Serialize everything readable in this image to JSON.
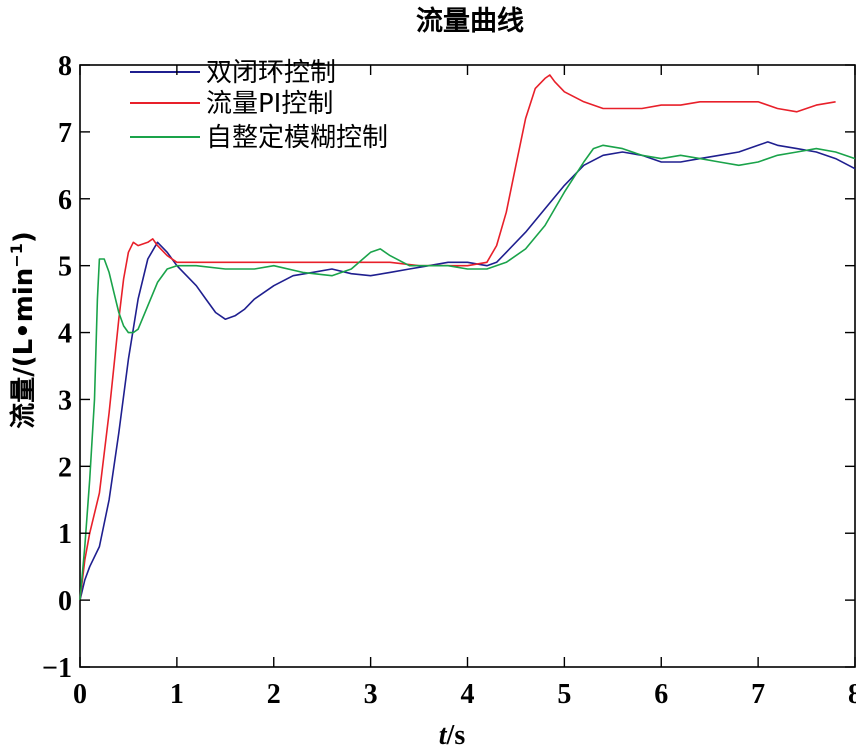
{
  "chart_data": {
    "type": "line",
    "title": "流量曲线",
    "xlabel_main": "t",
    "xlabel_unit": "/s",
    "ylabel_main": "流量/(L•min",
    "ylabel_sup": "−1",
    "ylabel_close": ")",
    "xlim": [
      0,
      8
    ],
    "ylim": [
      -1,
      8
    ],
    "xticks": [
      0,
      1,
      2,
      3,
      4,
      5,
      6,
      7,
      8
    ],
    "yticks": [
      -1,
      0,
      1,
      2,
      3,
      4,
      5,
      6,
      7,
      8
    ],
    "ytick_labels": [
      "−1",
      "0",
      "1",
      "2",
      "3",
      "4",
      "5",
      "6",
      "7",
      "8"
    ],
    "grid": false,
    "legend_position": "top-left",
    "series": [
      {
        "name": "双闭环控制",
        "color": "#1f1f8f",
        "points": [
          [
            0,
            0
          ],
          [
            0.05,
            0.3
          ],
          [
            0.1,
            0.5
          ],
          [
            0.2,
            0.8
          ],
          [
            0.3,
            1.5
          ],
          [
            0.4,
            2.5
          ],
          [
            0.5,
            3.6
          ],
          [
            0.6,
            4.5
          ],
          [
            0.7,
            5.1
          ],
          [
            0.8,
            5.35
          ],
          [
            0.9,
            5.2
          ],
          [
            1.0,
            5.0
          ],
          [
            1.1,
            4.85
          ],
          [
            1.2,
            4.7
          ],
          [
            1.3,
            4.5
          ],
          [
            1.4,
            4.3
          ],
          [
            1.5,
            4.2
          ],
          [
            1.6,
            4.25
          ],
          [
            1.7,
            4.35
          ],
          [
            1.8,
            4.5
          ],
          [
            2.0,
            4.7
          ],
          [
            2.2,
            4.85
          ],
          [
            2.4,
            4.9
          ],
          [
            2.6,
            4.95
          ],
          [
            2.8,
            4.88
          ],
          [
            3.0,
            4.85
          ],
          [
            3.2,
            4.9
          ],
          [
            3.4,
            4.95
          ],
          [
            3.6,
            5.0
          ],
          [
            3.8,
            5.05
          ],
          [
            4.0,
            5.05
          ],
          [
            4.2,
            5.0
          ],
          [
            4.3,
            5.05
          ],
          [
            4.4,
            5.2
          ],
          [
            4.6,
            5.5
          ],
          [
            4.8,
            5.85
          ],
          [
            5.0,
            6.2
          ],
          [
            5.2,
            6.5
          ],
          [
            5.4,
            6.65
          ],
          [
            5.6,
            6.7
          ],
          [
            5.8,
            6.65
          ],
          [
            6.0,
            6.55
          ],
          [
            6.2,
            6.55
          ],
          [
            6.4,
            6.6
          ],
          [
            6.6,
            6.65
          ],
          [
            6.8,
            6.7
          ],
          [
            7.0,
            6.8
          ],
          [
            7.1,
            6.85
          ],
          [
            7.2,
            6.8
          ],
          [
            7.4,
            6.75
          ],
          [
            7.6,
            6.7
          ],
          [
            7.8,
            6.6
          ],
          [
            8.0,
            6.45
          ]
        ]
      },
      {
        "name": "流量PI控制",
        "color": "#e8202a",
        "points": [
          [
            0,
            0
          ],
          [
            0.05,
            0.6
          ],
          [
            0.1,
            1.0
          ],
          [
            0.2,
            1.6
          ],
          [
            0.3,
            2.8
          ],
          [
            0.4,
            4.2
          ],
          [
            0.45,
            4.8
          ],
          [
            0.5,
            5.2
          ],
          [
            0.55,
            5.35
          ],
          [
            0.6,
            5.3
          ],
          [
            0.7,
            5.35
          ],
          [
            0.75,
            5.4
          ],
          [
            0.8,
            5.3
          ],
          [
            0.9,
            5.15
          ],
          [
            1.0,
            5.05
          ],
          [
            1.2,
            5.05
          ],
          [
            1.5,
            5.05
          ],
          [
            2.0,
            5.05
          ],
          [
            2.5,
            5.05
          ],
          [
            3.0,
            5.05
          ],
          [
            3.2,
            5.05
          ],
          [
            3.5,
            5.0
          ],
          [
            4.0,
            5.0
          ],
          [
            4.2,
            5.05
          ],
          [
            4.3,
            5.3
          ],
          [
            4.4,
            5.8
          ],
          [
            4.5,
            6.5
          ],
          [
            4.6,
            7.2
          ],
          [
            4.7,
            7.65
          ],
          [
            4.8,
            7.8
          ],
          [
            4.85,
            7.85
          ],
          [
            4.9,
            7.75
          ],
          [
            5.0,
            7.6
          ],
          [
            5.2,
            7.45
          ],
          [
            5.4,
            7.35
          ],
          [
            5.6,
            7.35
          ],
          [
            5.8,
            7.35
          ],
          [
            6.0,
            7.4
          ],
          [
            6.2,
            7.4
          ],
          [
            6.4,
            7.45
          ],
          [
            6.6,
            7.45
          ],
          [
            6.8,
            7.45
          ],
          [
            7.0,
            7.45
          ],
          [
            7.2,
            7.35
          ],
          [
            7.4,
            7.3
          ],
          [
            7.6,
            7.4
          ],
          [
            7.8,
            7.45
          ]
        ]
      },
      {
        "name": "自整定模糊控制",
        "color": "#1aa34a",
        "points": [
          [
            0,
            0
          ],
          [
            0.05,
            0.8
          ],
          [
            0.1,
            1.8
          ],
          [
            0.15,
            3.0
          ],
          [
            0.18,
            4.5
          ],
          [
            0.2,
            5.1
          ],
          [
            0.25,
            5.1
          ],
          [
            0.3,
            4.9
          ],
          [
            0.35,
            4.6
          ],
          [
            0.4,
            4.3
          ],
          [
            0.45,
            4.1
          ],
          [
            0.5,
            4.0
          ],
          [
            0.55,
            4.0
          ],
          [
            0.6,
            4.05
          ],
          [
            0.7,
            4.4
          ],
          [
            0.8,
            4.75
          ],
          [
            0.9,
            4.95
          ],
          [
            1.0,
            5.0
          ],
          [
            1.2,
            5.0
          ],
          [
            1.5,
            4.95
          ],
          [
            1.8,
            4.95
          ],
          [
            2.0,
            5.0
          ],
          [
            2.3,
            4.9
          ],
          [
            2.6,
            4.85
          ],
          [
            2.8,
            4.95
          ],
          [
            3.0,
            5.2
          ],
          [
            3.1,
            5.25
          ],
          [
            3.2,
            5.15
          ],
          [
            3.4,
            5.0
          ],
          [
            3.6,
            5.0
          ],
          [
            3.8,
            5.0
          ],
          [
            4.0,
            4.95
          ],
          [
            4.2,
            4.95
          ],
          [
            4.4,
            5.05
          ],
          [
            4.6,
            5.25
          ],
          [
            4.8,
            5.6
          ],
          [
            5.0,
            6.1
          ],
          [
            5.2,
            6.55
          ],
          [
            5.3,
            6.75
          ],
          [
            5.4,
            6.8
          ],
          [
            5.6,
            6.75
          ],
          [
            5.8,
            6.65
          ],
          [
            6.0,
            6.6
          ],
          [
            6.2,
            6.65
          ],
          [
            6.4,
            6.6
          ],
          [
            6.6,
            6.55
          ],
          [
            6.8,
            6.5
          ],
          [
            7.0,
            6.55
          ],
          [
            7.2,
            6.65
          ],
          [
            7.4,
            6.7
          ],
          [
            7.6,
            6.75
          ],
          [
            7.8,
            6.7
          ],
          [
            8.0,
            6.6
          ]
        ]
      }
    ]
  }
}
